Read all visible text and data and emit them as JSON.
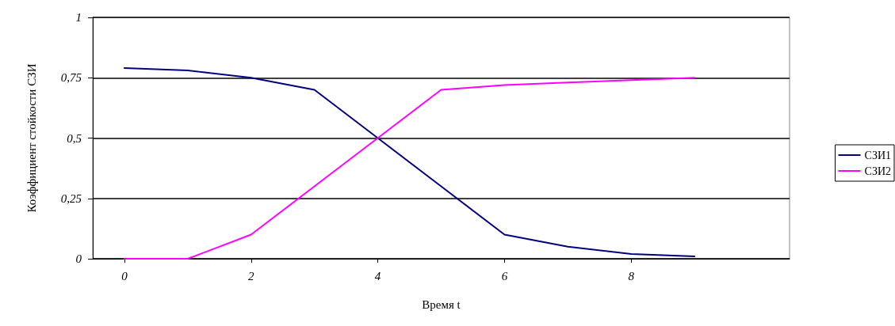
{
  "chart_data": {
    "type": "line",
    "xlabel": "Время t",
    "ylabel": "Коэффициент стойкости СЗИ",
    "x": [
      0,
      1,
      2,
      3,
      4,
      5,
      6,
      7,
      8,
      9
    ],
    "series": [
      {
        "name": "СЗИ1",
        "color": "#000080",
        "values": [
          0.79,
          0.78,
          0.75,
          0.7,
          0.5,
          0.3,
          0.1,
          0.05,
          0.02,
          0.01
        ]
      },
      {
        "name": "СЗИ2",
        "color": "#ff00ff",
        "values": [
          0,
          0,
          0.1,
          0.3,
          0.5,
          0.7,
          0.72,
          0.73,
          0.74,
          0.75
        ]
      }
    ],
    "xlim": [
      -0.5,
      10.5
    ],
    "xticks": [
      0,
      2,
      4,
      6,
      8
    ],
    "ylim": [
      0,
      1
    ],
    "yticks": [
      0,
      {
        "value": 0.25,
        "label": "0,25"
      },
      {
        "value": 0.5,
        "label": "0,5"
      },
      {
        "value": 0.75,
        "label": "0,75"
      },
      1
    ],
    "grid": "y",
    "legend": "right",
    "marker": "none",
    "line_style": "solid"
  }
}
